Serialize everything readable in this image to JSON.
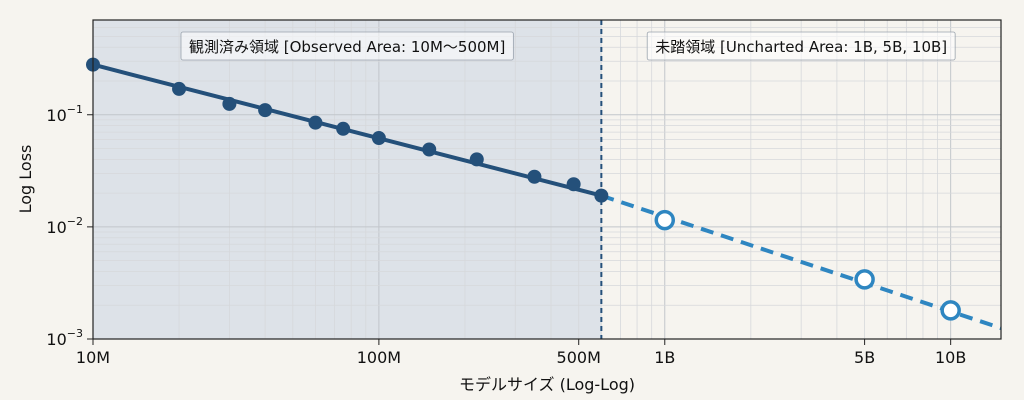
{
  "chart_data": {
    "type": "line",
    "xlabel": "モデルサイズ (Log-Log)",
    "ylabel": "Log Loss",
    "x_scale": "log",
    "y_scale": "log",
    "xlim": [
      10000000,
      15000000000
    ],
    "ylim": [
      0.001,
      0.7
    ],
    "x_ticks": [
      {
        "value": 10000000,
        "label": "10M"
      },
      {
        "value": 100000000,
        "label": "100M"
      },
      {
        "value": 500000000,
        "label": "500M"
      },
      {
        "value": 1000000000,
        "label": "1B"
      },
      {
        "value": 5000000000,
        "label": "5B"
      },
      {
        "value": 10000000000,
        "label": "10B"
      }
    ],
    "y_ticks": [
      {
        "value": 0.1,
        "base": "10",
        "exp": "−1"
      },
      {
        "value": 0.01,
        "base": "10",
        "exp": "−2"
      },
      {
        "value": 0.001,
        "base": "10",
        "exp": "−3"
      }
    ],
    "grid": true,
    "regions": [
      {
        "label": "観測済み領域 [Observed Area: 10M〜500M]",
        "from": 10000000,
        "to": 600000000,
        "color": "#dde2e8"
      },
      {
        "label": "未踏領域 [Uncharted Area: 1B, 5B, 10B]",
        "from": 600000000,
        "to": 15000000000,
        "color": "#f6f4ef"
      }
    ],
    "boundary_x": 600000000,
    "series": [
      {
        "style": "solid-filled",
        "color": "#24507a",
        "x": [
          10000000,
          20000000,
          30000000,
          40000000,
          60000000,
          75000000,
          100000000,
          150000000,
          220000000,
          350000000,
          480000000,
          600000000
        ],
        "y": [
          0.28,
          0.17,
          0.125,
          0.11,
          0.085,
          0.075,
          0.062,
          0.049,
          0.04,
          0.028,
          0.024,
          0.019
        ]
      },
      {
        "style": "dashed-hollow",
        "color": "#2e86c1",
        "x": [
          1000000000,
          5000000000,
          10000000000
        ],
        "y": [
          0.0115,
          0.0034,
          0.0018
        ]
      }
    ],
    "trend": {
      "x0": 10000000,
      "y0": 0.28,
      "x1": 600000000,
      "y1": 0.019,
      "x_end": 15000000000,
      "y_end": 0.00125
    }
  }
}
